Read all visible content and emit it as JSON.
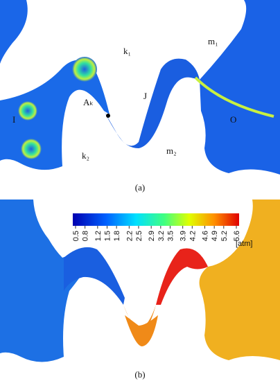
{
  "panel_a": {
    "labels": [
      "k₁",
      "m₁",
      "Aₖ",
      "J",
      "I",
      "O",
      "k₂",
      "m₂"
    ],
    "caption": "(a)"
  },
  "panel_b": {
    "colorbar": {
      "ticks": [
        0.5,
        0.8,
        1.2,
        1.5,
        1.8,
        2.2,
        2.5,
        2.9,
        3.2,
        3.5,
        3.9,
        4.2,
        4.6,
        4.9,
        5.2,
        5.6
      ],
      "unit": "[atm]"
    },
    "caption": "(b)"
  }
}
